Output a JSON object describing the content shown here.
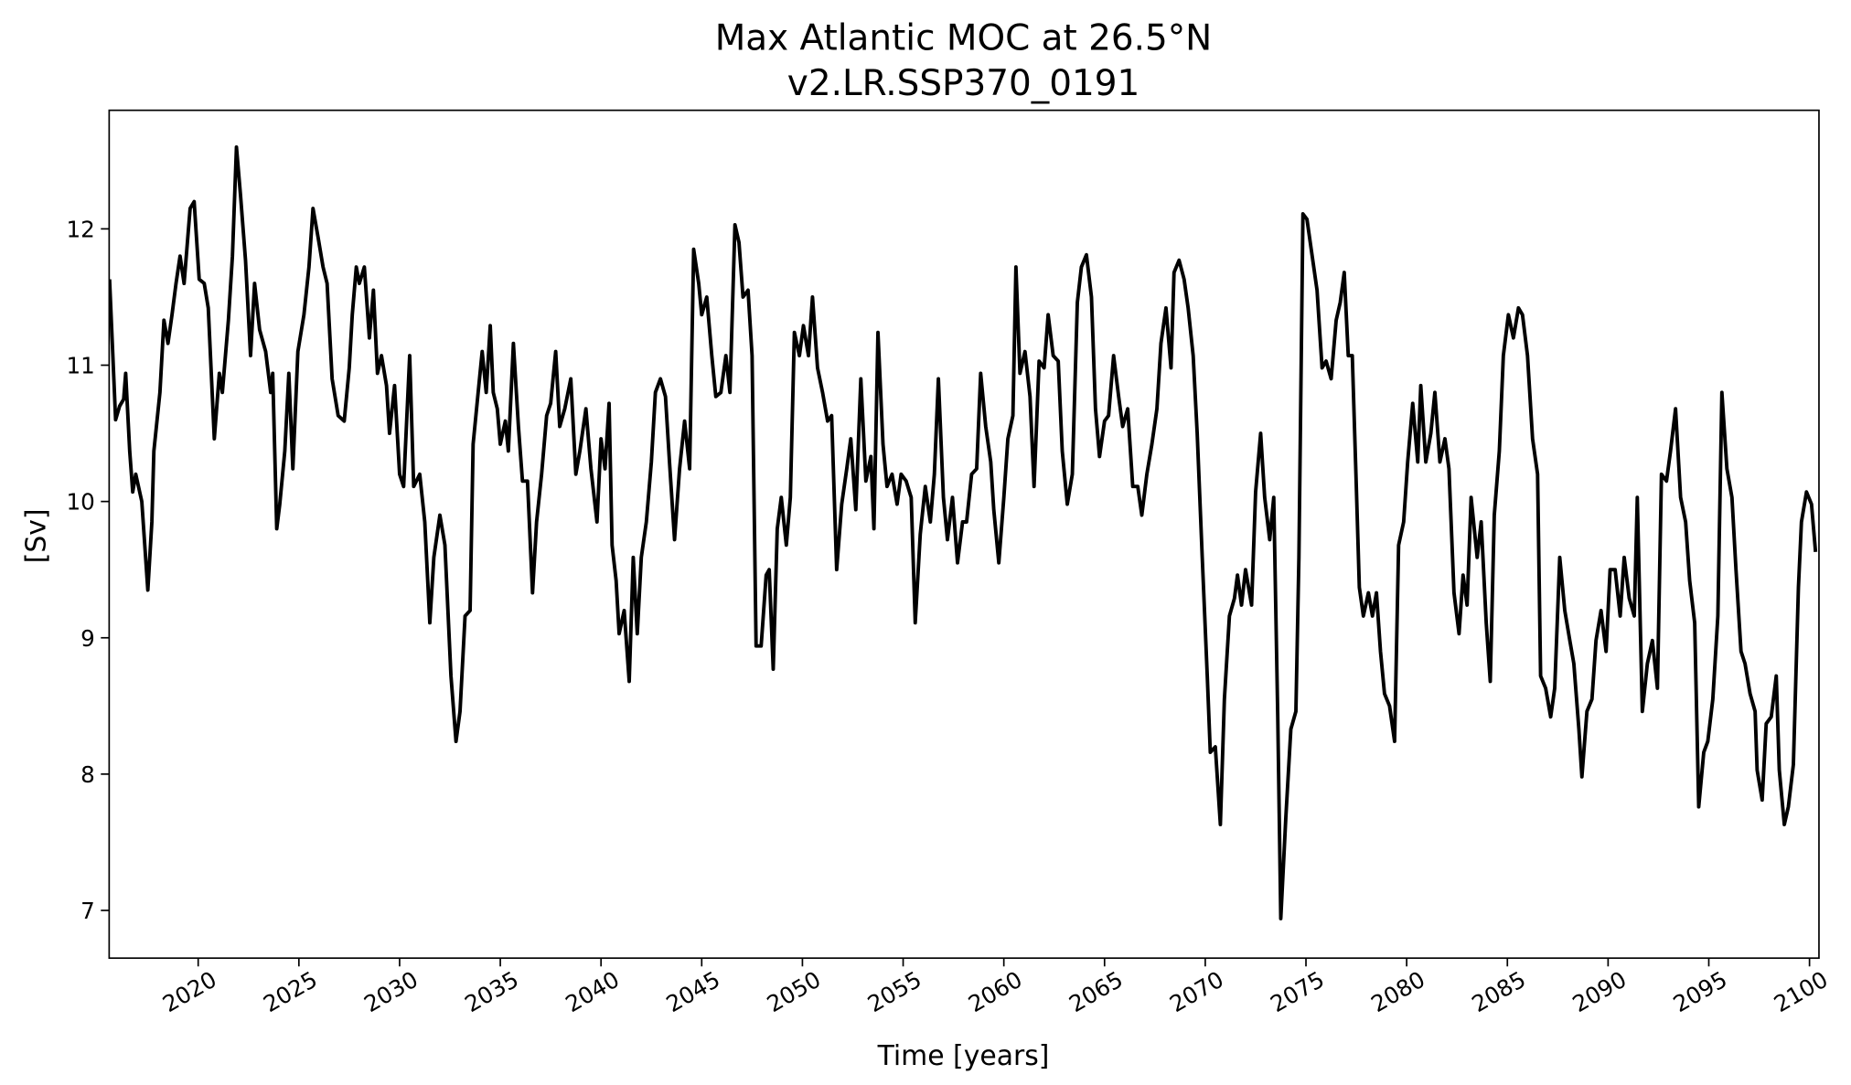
{
  "chart_data": {
    "type": "line",
    "title": "Max Atlantic MOC at 26.5°N",
    "subtitle": "v2.LR.SSP370_0191",
    "xlabel": "Time [years]",
    "ylabel": "[Sv]",
    "color": "#000000",
    "xlim": [
      2015.58,
      2100.47
    ],
    "ylim": [
      6.65,
      12.87
    ],
    "xticks": [
      2020,
      2025,
      2030,
      2035,
      2040,
      2045,
      2050,
      2055,
      2060,
      2065,
      2070,
      2075,
      2080,
      2085,
      2090,
      2095,
      2100
    ],
    "yticks": [
      7,
      8,
      9,
      10,
      11,
      12
    ],
    "grid": false,
    "x": [
      2015.6,
      2015.9,
      2016.1,
      2016.3,
      2016.4,
      2016.6,
      2016.75,
      2016.9,
      2017.2,
      2017.5,
      2017.7,
      2017.8,
      2018.1,
      2018.3,
      2018.5,
      2018.7,
      2018.9,
      2019.1,
      2019.3,
      2019.6,
      2019.8,
      2020.05,
      2020.3,
      2020.5,
      2020.8,
      2021.05,
      2021.2,
      2021.5,
      2021.7,
      2021.9,
      2022.1,
      2022.35,
      2022.6,
      2022.8,
      2023.05,
      2023.35,
      2023.6,
      2023.7,
      2023.9,
      2024.05,
      2024.3,
      2024.5,
      2024.7,
      2024.95,
      2025.25,
      2025.5,
      2025.7,
      2025.95,
      2026.2,
      2026.4,
      2026.65,
      2026.95,
      2027.25,
      2027.5,
      2027.65,
      2027.85,
      2028.0,
      2028.25,
      2028.5,
      2028.7,
      2028.9,
      2029.1,
      2029.35,
      2029.5,
      2029.75,
      2030.0,
      2030.2,
      2030.5,
      2030.7,
      2031.0,
      2031.25,
      2031.5,
      2031.7,
      2032.0,
      2032.25,
      2032.55,
      2032.8,
      2033.0,
      2033.25,
      2033.5,
      2033.65,
      2033.9,
      2034.1,
      2034.3,
      2034.5,
      2034.65,
      2034.85,
      2035.0,
      2035.25,
      2035.4,
      2035.65,
      2035.9,
      2036.1,
      2036.35,
      2036.6,
      2036.8,
      2037.05,
      2037.3,
      2037.5,
      2037.75,
      2037.95,
      2038.2,
      2038.5,
      2038.75,
      2038.95,
      2039.25,
      2039.5,
      2039.8,
      2040.0,
      2040.2,
      2040.4,
      2040.55,
      2040.75,
      2040.9,
      2041.15,
      2041.4,
      2041.6,
      2041.8,
      2042.0,
      2042.25,
      2042.5,
      2042.7,
      2042.95,
      2043.2,
      2043.4,
      2043.65,
      2043.9,
      2044.15,
      2044.4,
      2044.6,
      2044.85,
      2045.0,
      2045.25,
      2045.5,
      2045.7,
      2045.95,
      2046.2,
      2046.4,
      2046.65,
      2046.85,
      2047.05,
      2047.3,
      2047.5,
      2047.7,
      2047.95,
      2048.2,
      2048.35,
      2048.55,
      2048.75,
      2048.95,
      2049.2,
      2049.4,
      2049.6,
      2049.85,
      2050.05,
      2050.3,
      2050.5,
      2050.75,
      2051.0,
      2051.25,
      2051.45,
      2051.7,
      2051.95,
      2052.2,
      2052.4,
      2052.65,
      2052.9,
      2053.15,
      2053.4,
      2053.55,
      2053.75,
      2054.0,
      2054.2,
      2054.45,
      2054.7,
      2054.9,
      2055.15,
      2055.4,
      2055.6,
      2055.85,
      2056.1,
      2056.35,
      2056.55,
      2056.75,
      2057.0,
      2057.2,
      2057.45,
      2057.7,
      2057.95,
      2058.15,
      2058.4,
      2058.65,
      2058.85,
      2059.1,
      2059.35,
      2059.5,
      2059.75,
      2060.0,
      2060.2,
      2060.45,
      2060.6,
      2060.8,
      2061.05,
      2061.3,
      2061.5,
      2061.75,
      2062.0,
      2062.2,
      2062.45,
      2062.7,
      2062.9,
      2063.15,
      2063.4,
      2063.65,
      2063.85,
      2064.1,
      2064.35,
      2064.55,
      2064.75,
      2065.0,
      2065.2,
      2065.45,
      2065.7,
      2065.9,
      2066.15,
      2066.4,
      2066.65,
      2066.85,
      2067.1,
      2067.35,
      2067.6,
      2067.8,
      2068.05,
      2068.3,
      2068.45,
      2068.7,
      2068.95,
      2069.15,
      2069.4,
      2069.6,
      2069.85,
      2070.1,
      2070.25,
      2070.5,
      2070.75,
      2070.95,
      2071.2,
      2071.45,
      2071.6,
      2071.8,
      2072.0,
      2072.3,
      2072.5,
      2072.75,
      2072.95,
      2073.2,
      2073.4,
      2073.6,
      2073.75,
      2074.0,
      2074.25,
      2074.5,
      2074.65,
      2074.85,
      2075.05,
      2075.3,
      2075.55,
      2075.8,
      2076.0,
      2076.25,
      2076.5,
      2076.7,
      2076.9,
      2077.1,
      2077.3,
      2077.5,
      2077.65,
      2077.85,
      2078.1,
      2078.3,
      2078.5,
      2078.7,
      2078.9,
      2079.15,
      2079.4,
      2079.6,
      2079.85,
      2080.05,
      2080.3,
      2080.55,
      2080.7,
      2080.95,
      2081.2,
      2081.4,
      2081.65,
      2081.9,
      2082.1,
      2082.35,
      2082.6,
      2082.8,
      2083.0,
      2083.2,
      2083.5,
      2083.7,
      2083.95,
      2084.15,
      2084.35,
      2084.6,
      2084.8,
      2085.05,
      2085.3,
      2085.55,
      2085.75,
      2086.0,
      2086.25,
      2086.5,
      2086.65,
      2086.9,
      2087.15,
      2087.35,
      2087.6,
      2087.85,
      2088.1,
      2088.3,
      2088.55,
      2088.7,
      2088.95,
      2089.2,
      2089.4,
      2089.65,
      2089.9,
      2090.1,
      2090.35,
      2090.6,
      2090.8,
      2091.05,
      2091.3,
      2091.45,
      2091.7,
      2091.95,
      2092.2,
      2092.45,
      2092.65,
      2092.9,
      2093.1,
      2093.35,
      2093.6,
      2093.85,
      2094.05,
      2094.3,
      2094.5,
      2094.75,
      2094.95,
      2095.2,
      2095.45,
      2095.65,
      2095.9,
      2096.15,
      2096.35,
      2096.6,
      2096.8,
      2097.05,
      2097.3,
      2097.4,
      2097.65,
      2097.85,
      2098.1,
      2098.35,
      2098.5,
      2098.75,
      2098.95,
      2099.2,
      2099.45,
      2099.6,
      2099.85,
      2100.1,
      2100.3
    ],
    "values": [
      11.63,
      10.6,
      10.7,
      10.75,
      10.94,
      10.37,
      10.07,
      10.2,
      10.0,
      9.35,
      9.85,
      10.37,
      10.8,
      11.33,
      11.16,
      11.37,
      11.6,
      11.8,
      11.6,
      12.15,
      12.2,
      11.63,
      11.6,
      11.42,
      10.46,
      10.94,
      10.8,
      11.33,
      11.8,
      12.6,
      12.25,
      11.77,
      11.07,
      11.6,
      11.26,
      11.1,
      10.8,
      10.94,
      9.8,
      9.98,
      10.37,
      10.94,
      10.24,
      11.1,
      11.37,
      11.72,
      12.15,
      11.94,
      11.72,
      11.6,
      10.9,
      10.63,
      10.59,
      10.98,
      11.37,
      11.72,
      11.6,
      11.72,
      11.2,
      11.55,
      10.94,
      11.07,
      10.85,
      10.5,
      10.85,
      10.2,
      10.11,
      11.07,
      10.11,
      10.2,
      9.85,
      9.11,
      9.59,
      9.9,
      9.68,
      8.72,
      8.24,
      8.46,
      9.16,
      9.2,
      10.42,
      10.8,
      11.1,
      10.8,
      11.29,
      10.8,
      10.68,
      10.42,
      10.59,
      10.37,
      11.16,
      10.55,
      10.15,
      10.15,
      9.33,
      9.85,
      10.2,
      10.63,
      10.72,
      11.1,
      10.55,
      10.68,
      10.9,
      10.2,
      10.37,
      10.68,
      10.24,
      9.85,
      10.46,
      10.24,
      10.72,
      9.68,
      9.42,
      9.03,
      9.2,
      8.68,
      9.59,
      9.03,
      9.59,
      9.85,
      10.29,
      10.8,
      10.9,
      10.77,
      10.29,
      9.72,
      10.24,
      10.59,
      10.24,
      11.85,
      11.6,
      11.37,
      11.5,
      11.07,
      10.77,
      10.8,
      11.07,
      10.8,
      12.03,
      11.9,
      11.5,
      11.55,
      11.07,
      8.94,
      8.94,
      9.46,
      9.5,
      8.77,
      9.8,
      10.03,
      9.68,
      10.03,
      11.24,
      11.07,
      11.29,
      11.07,
      11.5,
      10.98,
      10.8,
      10.59,
      10.63,
      9.5,
      9.98,
      10.24,
      10.46,
      9.94,
      10.9,
      10.15,
      10.33,
      9.8,
      11.24,
      10.42,
      10.11,
      10.2,
      9.98,
      10.2,
      10.15,
      10.03,
      9.11,
      9.76,
      10.11,
      9.85,
      10.2,
      10.9,
      10.03,
      9.72,
      10.03,
      9.55,
      9.85,
      9.85,
      10.2,
      10.24,
      10.94,
      10.55,
      10.29,
      9.94,
      9.55,
      10.03,
      10.46,
      10.63,
      11.72,
      10.94,
      11.1,
      10.77,
      10.11,
      11.03,
      10.98,
      11.37,
      11.07,
      11.03,
      10.37,
      9.98,
      10.2,
      11.46,
      11.72,
      11.81,
      11.5,
      10.68,
      10.33,
      10.59,
      10.63,
      11.07,
      10.77,
      10.55,
      10.68,
      10.11,
      10.11,
      9.9,
      10.2,
      10.42,
      10.68,
      11.16,
      11.42,
      10.98,
      11.68,
      11.77,
      11.63,
      11.42,
      11.07,
      10.5,
      9.59,
      8.72,
      8.16,
      8.2,
      7.63,
      8.55,
      9.16,
      9.29,
      9.46,
      9.24,
      9.5,
      9.24,
      10.07,
      10.5,
      10.03,
      9.72,
      10.03,
      8.42,
      6.94,
      7.68,
      8.33,
      8.46,
      9.59,
      12.11,
      12.07,
      11.81,
      11.55,
      10.98,
      11.03,
      10.9,
      11.33,
      11.46,
      11.68,
      11.07,
      11.07,
      10.11,
      9.37,
      9.16,
      9.33,
      9.16,
      9.33,
      8.9,
      8.59,
      8.5,
      8.24,
      9.68,
      9.85,
      10.29,
      10.72,
      10.29,
      10.85,
      10.29,
      10.5,
      10.8,
      10.29,
      10.46,
      10.24,
      9.33,
      9.03,
      9.46,
      9.24,
      10.03,
      9.59,
      9.85,
      9.11,
      8.68,
      9.9,
      10.37,
      11.07,
      11.37,
      11.2,
      11.42,
      11.37,
      11.07,
      10.46,
      10.2,
      8.72,
      8.63,
      8.42,
      8.63,
      9.59,
      9.2,
      8.98,
      8.81,
      8.33,
      7.98,
      8.46,
      8.55,
      8.98,
      9.2,
      8.9,
      9.5,
      9.5,
      9.16,
      9.59,
      9.29,
      9.16,
      10.03,
      8.46,
      8.81,
      8.98,
      8.63,
      10.2,
      10.15,
      10.37,
      10.68,
      10.03,
      9.85,
      9.42,
      9.11,
      7.76,
      8.16,
      8.24,
      8.55,
      9.16,
      10.8,
      10.24,
      10.03,
      9.5,
      8.9,
      8.81,
      8.59,
      8.46,
      8.03,
      7.81,
      8.37,
      8.42,
      8.72,
      8.03,
      7.63,
      7.76,
      8.07,
      9.37,
      9.85,
      10.07,
      9.98,
      9.63
    ]
  }
}
